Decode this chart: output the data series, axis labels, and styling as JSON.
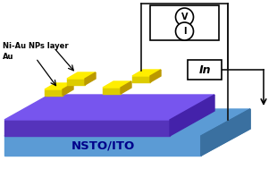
{
  "substrate_color_top": "#5b9bd5",
  "substrate_color_side": "#4a85bc",
  "substrate_color_right": "#3a70a0",
  "top_layer_color_top": "#7755ee",
  "top_layer_color_front": "#5533bb",
  "top_layer_color_right": "#4422aa",
  "au_np_top": "#ffee00",
  "au_np_front": "#ddcc00",
  "au_np_right": "#bb9900",
  "wire_color": "#111111",
  "label_ni_au": "Ni-Au NPs layer",
  "label_au": "Au",
  "label_substrate": "NSTO/ITO",
  "label_in": "In",
  "label_v": "V",
  "label_i": "I",
  "bg_color": "#ffffff",
  "substrate_label_color": "#00008b",
  "fig_width": 3.1,
  "fig_height": 1.89
}
